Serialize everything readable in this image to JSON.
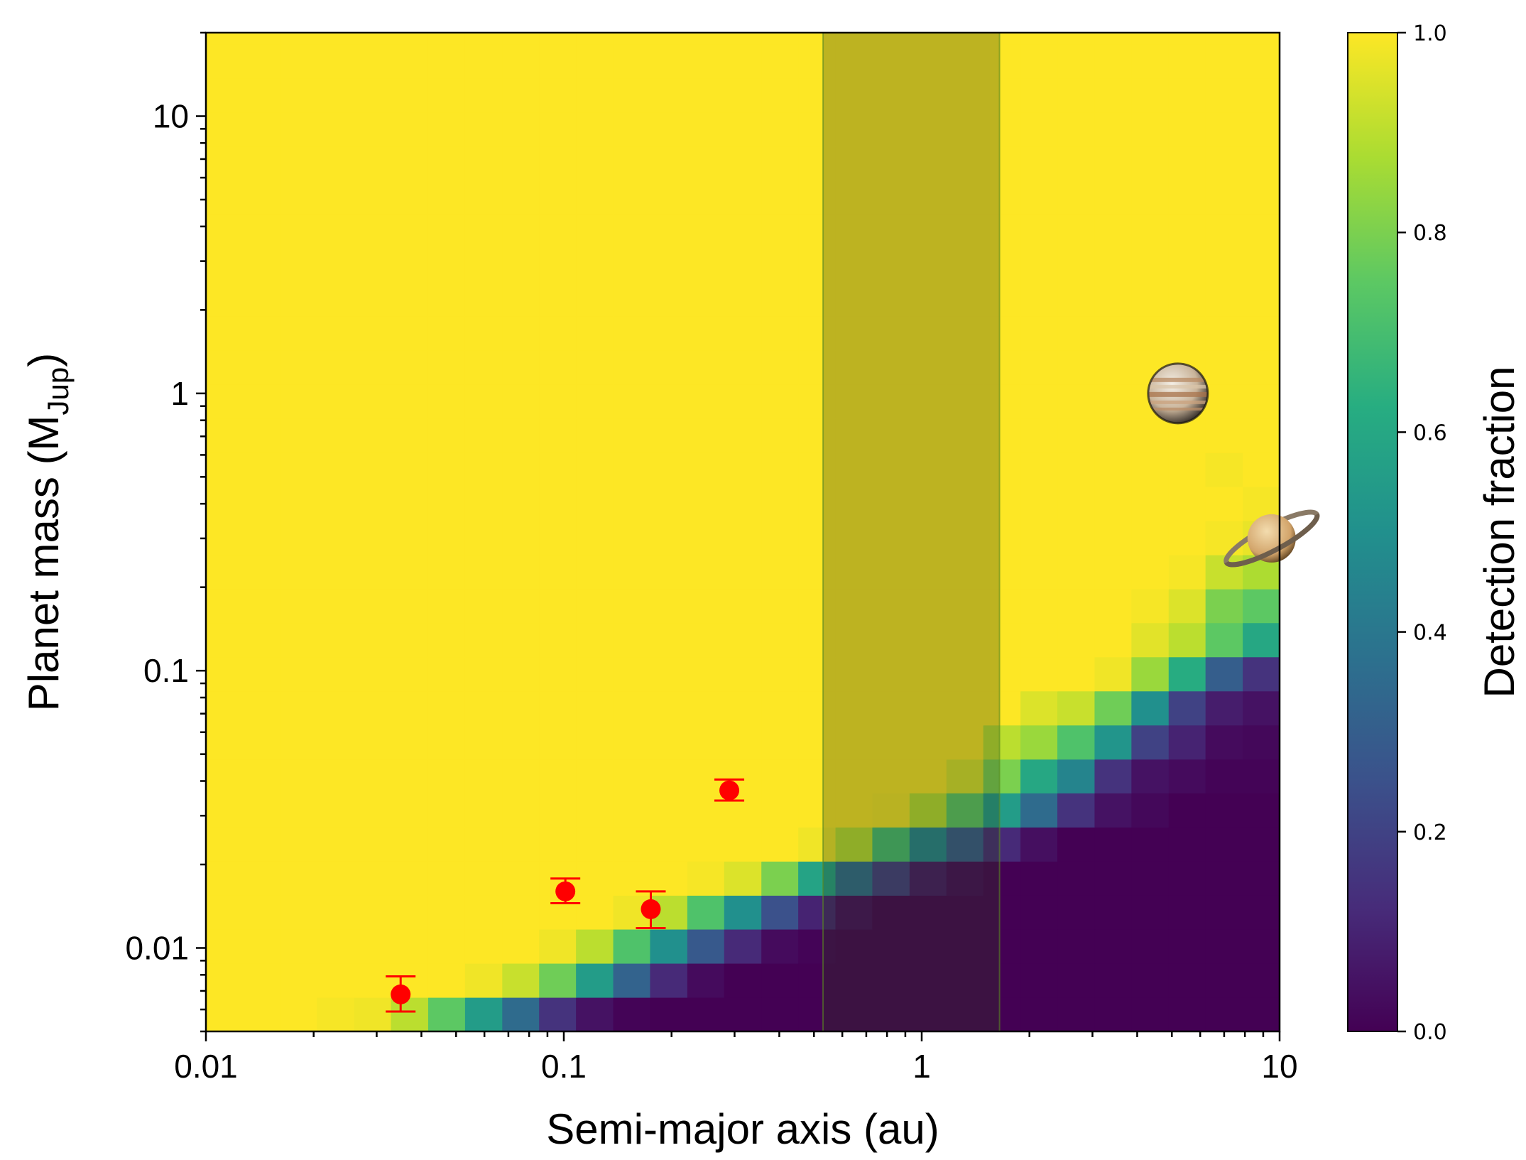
{
  "chart_data": {
    "type": "heatmap",
    "xlabel": "Semi-major axis (au)",
    "ylabel_main": "Planet mass (M",
    "ylabel_sub": "Jup",
    "ylabel_close": ")",
    "colorbar_label": "Detection fraction",
    "x_scale": "log",
    "y_scale": "log",
    "xlim": [
      0.01,
      10
    ],
    "ylim": [
      0.005,
      20
    ],
    "x_ticks": [
      {
        "value": 0.01,
        "label": "0.01"
      },
      {
        "value": 0.1,
        "label": "0.1"
      },
      {
        "value": 1,
        "label": "1"
      },
      {
        "value": 10,
        "label": "10"
      }
    ],
    "y_ticks": [
      {
        "value": 0.01,
        "label": "0.01"
      },
      {
        "value": 0.1,
        "label": "0.1"
      },
      {
        "value": 1,
        "label": "1"
      },
      {
        "value": 10,
        "label": "10"
      }
    ],
    "colorbar": {
      "range": [
        0,
        1
      ],
      "colormap": "viridis",
      "ticks": [
        {
          "value": 0.0,
          "label": "0.0"
        },
        {
          "value": 0.2,
          "label": "0.2"
        },
        {
          "value": 0.4,
          "label": "0.4"
        },
        {
          "value": 0.6,
          "label": "0.6"
        },
        {
          "value": 0.8,
          "label": "0.8"
        },
        {
          "value": 1.0,
          "label": "1.0"
        }
      ]
    },
    "grid": {
      "x_edges_log10": [
        -2.0,
        -1.896,
        -1.793,
        -1.69,
        -1.586,
        -1.483,
        -1.379,
        -1.276,
        -1.172,
        -1.069,
        -0.966,
        -0.862,
        -0.759,
        -0.655,
        -0.552,
        -0.448,
        -0.345,
        -0.241,
        -0.138,
        -0.034,
        0.069,
        0.172,
        0.276,
        0.379,
        0.483,
        0.586,
        0.69,
        0.793,
        0.897,
        1.0
      ],
      "y_edges_log10": [
        -2.301,
        -2.178,
        -2.055,
        -1.932,
        -1.81,
        -1.687,
        -1.564,
        -1.441,
        -1.319,
        -1.196,
        -1.073,
        -0.95,
        -0.827,
        -0.705,
        -0.582,
        -0.459,
        -0.336,
        -0.214,
        -0.091,
        0.032,
        0.155,
        0.278,
        0.4,
        0.523,
        0.646,
        0.769,
        0.891,
        1.014,
        1.137,
        1.26,
        1.383
      ]
    },
    "detection_fraction_rows_bottom_to_top": [
      [
        1,
        1,
        1,
        0.99,
        0.98,
        0.9,
        0.75,
        0.55,
        0.35,
        0.15,
        0.05,
        0.01,
        0,
        0,
        0,
        0,
        0,
        0,
        0,
        0,
        0,
        0,
        0,
        0,
        0,
        0,
        0,
        0,
        0
      ],
      [
        1,
        1,
        1,
        1,
        1,
        1,
        1,
        0.98,
        0.92,
        0.78,
        0.55,
        0.32,
        0.12,
        0.03,
        0,
        0,
        0,
        0,
        0,
        0,
        0,
        0,
        0,
        0,
        0,
        0,
        0,
        0,
        0
      ],
      [
        1,
        1,
        1,
        1,
        1,
        1,
        1,
        1,
        1,
        0.98,
        0.9,
        0.72,
        0.5,
        0.28,
        0.12,
        0.03,
        0.01,
        0,
        0,
        0,
        0,
        0,
        0,
        0,
        0,
        0,
        0,
        0,
        0
      ],
      [
        1,
        1,
        1,
        1,
        1,
        1,
        1,
        1,
        1,
        1,
        1,
        0.98,
        0.9,
        0.72,
        0.5,
        0.25,
        0.1,
        0.03,
        0,
        0,
        0,
        0,
        0,
        0,
        0,
        0,
        0,
        0,
        0
      ],
      [
        1,
        1,
        1,
        1,
        1,
        1,
        1,
        1,
        1,
        1,
        1,
        1,
        1,
        0.99,
        0.95,
        0.8,
        0.58,
        0.35,
        0.18,
        0.06,
        0.02,
        0,
        0,
        0,
        0,
        0,
        0,
        0,
        0
      ],
      [
        1,
        1,
        1,
        1,
        1,
        1,
        1,
        1,
        1,
        1,
        1,
        1,
        1,
        1,
        1,
        1,
        0.98,
        0.9,
        0.7,
        0.45,
        0.28,
        0.12,
        0.04,
        0,
        0,
        0,
        0,
        0,
        0
      ],
      [
        1,
        1,
        1,
        1,
        1,
        1,
        1,
        1,
        1,
        1,
        1,
        1,
        1,
        1,
        1,
        1,
        1,
        1,
        0.99,
        0.9,
        0.75,
        0.55,
        0.35,
        0.15,
        0.05,
        0.02,
        0,
        0,
        0
      ],
      [
        1,
        1,
        1,
        1,
        1,
        1,
        1,
        1,
        1,
        1,
        1,
        1,
        1,
        1,
        1,
        1,
        1,
        1,
        1,
        1,
        0.95,
        0.8,
        0.6,
        0.45,
        0.15,
        0.05,
        0.03,
        0.01,
        0.01
      ],
      [
        1,
        1,
        1,
        1,
        1,
        1,
        1,
        1,
        1,
        1,
        1,
        1,
        1,
        1,
        1,
        1,
        1,
        1,
        1,
        1,
        1,
        0.9,
        0.85,
        0.72,
        0.52,
        0.2,
        0.1,
        0.03,
        0.02
      ],
      [
        1,
        1,
        1,
        1,
        1,
        1,
        1,
        1,
        1,
        1,
        1,
        1,
        1,
        1,
        1,
        1,
        1,
        1,
        1,
        1,
        1,
        1,
        0.95,
        0.92,
        0.78,
        0.5,
        0.2,
        0.08,
        0.05
      ],
      [
        1,
        1,
        1,
        1,
        1,
        1,
        1,
        1,
        1,
        1,
        1,
        1,
        1,
        1,
        1,
        1,
        1,
        1,
        1,
        1,
        1,
        1,
        1,
        1,
        0.98,
        0.85,
        0.62,
        0.3,
        0.15
      ],
      [
        1,
        1,
        1,
        1,
        1,
        1,
        1,
        1,
        1,
        1,
        1,
        1,
        1,
        1,
        1,
        1,
        1,
        1,
        1,
        1,
        1,
        1,
        1,
        1,
        1,
        0.96,
        0.9,
        0.75,
        0.6
      ],
      [
        1,
        1,
        1,
        1,
        1,
        1,
        1,
        1,
        1,
        1,
        1,
        1,
        1,
        1,
        1,
        1,
        1,
        1,
        1,
        1,
        1,
        1,
        1,
        1,
        1,
        0.99,
        0.95,
        0.8,
        0.75
      ],
      [
        1,
        1,
        1,
        1,
        1,
        1,
        1,
        1,
        1,
        1,
        1,
        1,
        1,
        1,
        1,
        1,
        1,
        1,
        1,
        1,
        1,
        1,
        1,
        1,
        1,
        1,
        0.99,
        0.92,
        0.88
      ],
      [
        1,
        1,
        1,
        1,
        1,
        1,
        1,
        1,
        1,
        1,
        1,
        1,
        1,
        1,
        1,
        1,
        1,
        1,
        1,
        1,
        1,
        1,
        1,
        1,
        1,
        1,
        1,
        0.99,
        0.97
      ],
      [
        1,
        1,
        1,
        1,
        1,
        1,
        1,
        1,
        1,
        1,
        1,
        1,
        1,
        1,
        1,
        1,
        1,
        1,
        1,
        1,
        1,
        1,
        1,
        1,
        1,
        1,
        1,
        1,
        0.99
      ],
      [
        1,
        1,
        1,
        1,
        1,
        1,
        1,
        1,
        1,
        1,
        1,
        1,
        1,
        1,
        1,
        1,
        1,
        1,
        1,
        1,
        1,
        1,
        1,
        1,
        1,
        1,
        1,
        0.99,
        1
      ],
      [
        1,
        1,
        1,
        1,
        1,
        1,
        1,
        1,
        1,
        1,
        1,
        1,
        1,
        1,
        1,
        1,
        1,
        1,
        1,
        1,
        1,
        1,
        1,
        1,
        1,
        1,
        1,
        1,
        1
      ],
      [
        1,
        1,
        1,
        1,
        1,
        1,
        1,
        1,
        1,
        1,
        1,
        1,
        1,
        1,
        1,
        1,
        1,
        1,
        1,
        1,
        1,
        1,
        1,
        1,
        1,
        1,
        1,
        1,
        1
      ],
      [
        1,
        1,
        1,
        1,
        1,
        1,
        1,
        1,
        1,
        1,
        1,
        1,
        1,
        1,
        1,
        1,
        1,
        1,
        1,
        1,
        1,
        1,
        1,
        1,
        1,
        1,
        1,
        1,
        1
      ],
      [
        1,
        1,
        1,
        1,
        1,
        1,
        1,
        1,
        1,
        1,
        1,
        1,
        1,
        1,
        1,
        1,
        1,
        1,
        1,
        1,
        1,
        1,
        1,
        1,
        1,
        1,
        1,
        1,
        1
      ],
      [
        1,
        1,
        1,
        1,
        1,
        1,
        1,
        1,
        1,
        1,
        1,
        1,
        1,
        1,
        1,
        1,
        1,
        1,
        1,
        1,
        1,
        1,
        1,
        1,
        1,
        1,
        1,
        1,
        1
      ],
      [
        1,
        1,
        1,
        1,
        1,
        1,
        1,
        1,
        1,
        1,
        1,
        1,
        1,
        1,
        1,
        1,
        1,
        1,
        1,
        1,
        1,
        1,
        1,
        1,
        1,
        1,
        1,
        1,
        1
      ],
      [
        1,
        1,
        1,
        1,
        1,
        1,
        1,
        1,
        1,
        1,
        1,
        1,
        1,
        1,
        1,
        1,
        1,
        1,
        1,
        1,
        1,
        1,
        1,
        1,
        1,
        1,
        1,
        1,
        1
      ],
      [
        1,
        1,
        1,
        1,
        1,
        1,
        1,
        1,
        1,
        1,
        1,
        1,
        1,
        1,
        1,
        1,
        1,
        1,
        1,
        1,
        1,
        1,
        1,
        1,
        1,
        1,
        1,
        1,
        1
      ],
      [
        1,
        1,
        1,
        1,
        1,
        1,
        1,
        1,
        1,
        1,
        1,
        1,
        1,
        1,
        1,
        1,
        1,
        1,
        1,
        1,
        1,
        1,
        1,
        1,
        1,
        1,
        1,
        1,
        1
      ],
      [
        1,
        1,
        1,
        1,
        1,
        1,
        1,
        1,
        1,
        1,
        1,
        1,
        1,
        1,
        1,
        1,
        1,
        1,
        1,
        1,
        1,
        1,
        1,
        1,
        1,
        1,
        1,
        1,
        1
      ],
      [
        1,
        1,
        1,
        1,
        1,
        1,
        1,
        1,
        1,
        1,
        1,
        1,
        1,
        1,
        1,
        1,
        1,
        1,
        1,
        1,
        1,
        1,
        1,
        1,
        1,
        1,
        1,
        1,
        1
      ],
      [
        1,
        1,
        1,
        1,
        1,
        1,
        1,
        1,
        1,
        1,
        1,
        1,
        1,
        1,
        1,
        1,
        1,
        1,
        1,
        1,
        1,
        1,
        1,
        1,
        1,
        1,
        1,
        1,
        1
      ],
      [
        1,
        1,
        1,
        1,
        1,
        1,
        1,
        1,
        1,
        1,
        1,
        1,
        1,
        1,
        1,
        1,
        1,
        1,
        1,
        1,
        1,
        1,
        1,
        1,
        1,
        1,
        1,
        1,
        1
      ]
    ],
    "shaded_band": {
      "x_range": [
        0.53,
        1.65
      ],
      "color": "#2a3b1a",
      "opacity": 0.3
    },
    "planets_detected": [
      {
        "a": 0.035,
        "mass": 0.0068,
        "err_low": 0.0009,
        "err_high": 0.0011
      },
      {
        "a": 0.101,
        "mass": 0.016,
        "err_low": 0.0015,
        "err_high": 0.0018
      },
      {
        "a": 0.175,
        "mass": 0.0138,
        "err_low": 0.002,
        "err_high": 0.0022
      },
      {
        "a": 0.29,
        "mass": 0.037,
        "err_low": 0.003,
        "err_high": 0.0035
      }
    ],
    "marker_color": "#ff0000",
    "solar_system_markers": [
      {
        "icon": "jupiter-icon",
        "a": 5.2,
        "mass": 1.0
      },
      {
        "icon": "saturn-icon",
        "a": 9.5,
        "mass": 0.3
      }
    ]
  }
}
